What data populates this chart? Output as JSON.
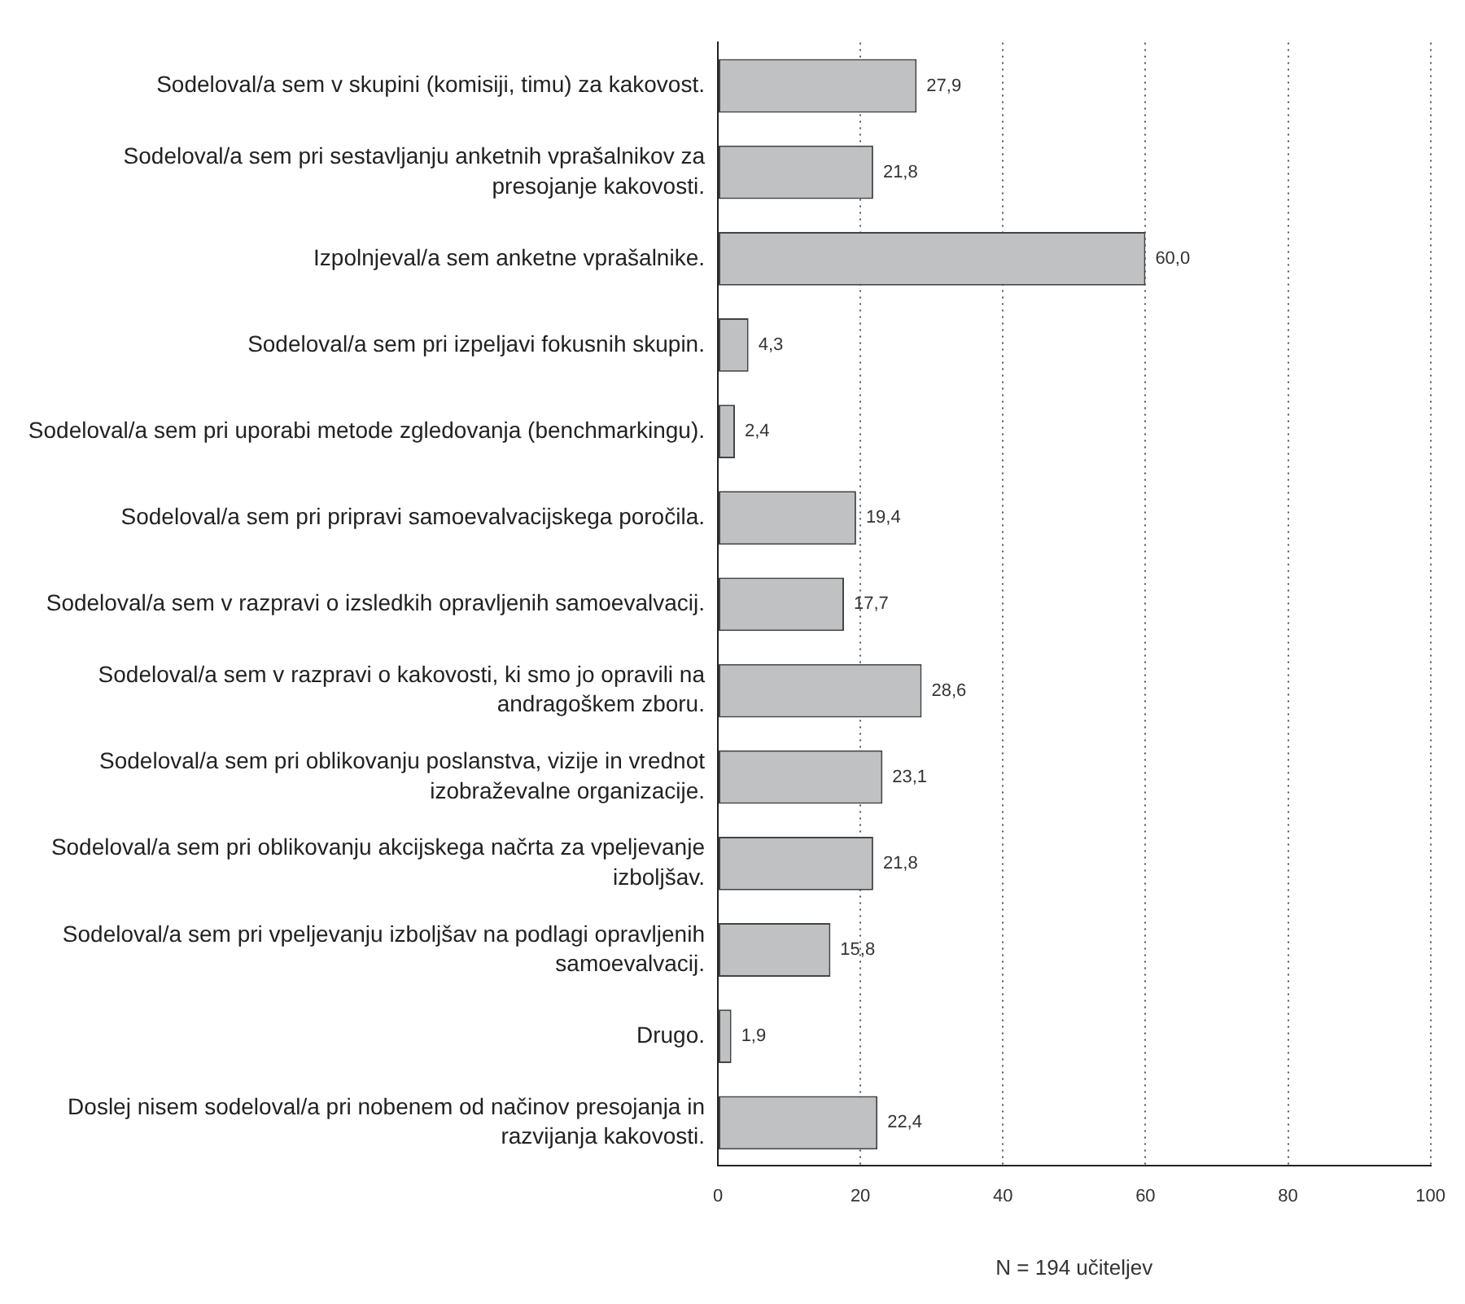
{
  "chart_data": {
    "type": "bar",
    "orientation": "horizontal",
    "xlabel": "N = 194 učiteljev",
    "categories": [
      "Sodeloval/a sem v skupini (komisiji, timu) za kakovost.",
      "Sodeloval/a sem pri sestavljanju anketnih vprašalnikov za presojanje kakovosti.",
      "Izpolnjeval/a sem anketne vprašalnike.",
      "Sodeloval/a sem pri izpeljavi fokusnih skupin.",
      "Sodeloval/a sem pri uporabi metode zgledovanja (benchmarkingu).",
      "Sodeloval/a sem pri pripravi samoevalvacijskega poročila.",
      "Sodeloval/a sem v razpravi o izsledkih opravljenih samoevalvacij.",
      "Sodeloval/a sem v razpravi o kakovosti, ki smo jo opravili na andragoškem zboru.",
      "Sodeloval/a sem pri oblikovanju poslanstva, vizije in vrednot izobraževalne organizacije.",
      "Sodeloval/a sem pri oblikovanju akcijskega načrta za vpeljevanje izboljšav.",
      "Sodeloval/a sem pri vpeljevanju izboljšav na podlagi opravljenih samoevalvacij.",
      "Drugo.",
      "Doslej nisem sodeloval/a pri nobenem od načinov presojanja in razvijanja kakovosti."
    ],
    "values": [
      27.9,
      21.8,
      60.0,
      4.3,
      2.4,
      19.4,
      17.7,
      28.6,
      23.1,
      21.8,
      15.8,
      1.9,
      22.4
    ],
    "value_labels": [
      "27,9",
      "21,8",
      "60,0",
      "4,3",
      "2,4",
      "19,4",
      "17,7",
      "28,6",
      "23,1",
      "21,8",
      "15,8",
      "1,9",
      "22,4"
    ],
    "color": "#c0c1c3",
    "xlim": [
      0,
      100
    ],
    "xticks": [
      0,
      20,
      40,
      60,
      80,
      100
    ],
    "grid": "x",
    "legend": false
  }
}
